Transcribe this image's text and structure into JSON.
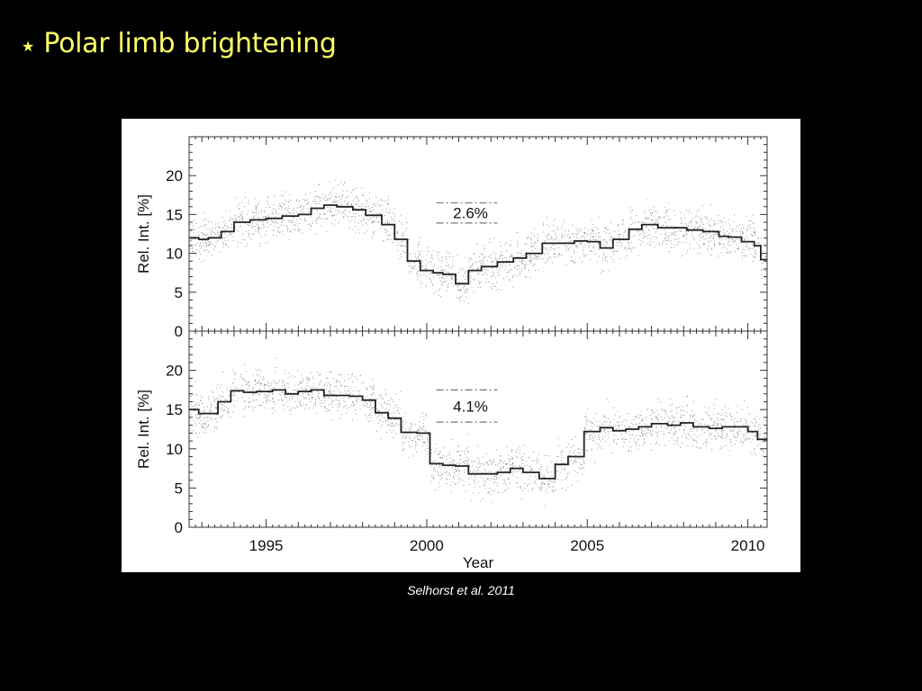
{
  "slide": {
    "bullet_icon": "star-icon",
    "bullet_char": "★",
    "title": "Polar limb brightening",
    "title_color": "#ffff66",
    "caption": "Selhorst et al. 2011"
  },
  "chart_data": [
    {
      "type": "line",
      "panel": "top",
      "title": "",
      "xlabel": "",
      "ylabel": "Rel. Int. [%]",
      "xlim": [
        1992.6,
        2010.6
      ],
      "ylim": [
        0,
        25
      ],
      "yticks": [
        "0",
        "5",
        "10",
        "15",
        "20"
      ],
      "xticks": [
        "1995",
        "2000",
        "2005",
        "2010"
      ],
      "annotation": "2.6%",
      "annotation_range": [
        13.9,
        16.5
      ],
      "series": [
        {
          "style": "step",
          "x": [
            1992.6,
            1992.9,
            1993.2,
            1993.6,
            1994.0,
            1994.5,
            1995.0,
            1995.5,
            1996.0,
            1996.4,
            1996.8,
            1997.2,
            1997.7,
            1998.1,
            1998.6,
            1999.0,
            1999.4,
            1999.8,
            2000.2,
            2000.5,
            2000.9,
            2001.3,
            2001.7,
            2002.2,
            2002.7,
            2003.1,
            2003.6,
            2004.1,
            2004.6,
            2005.0,
            2005.4,
            2005.8,
            2006.3,
            2006.7,
            2007.2,
            2007.7,
            2008.1,
            2008.6,
            2009.1,
            2009.4,
            2009.8,
            2010.2,
            2010.4
          ],
          "y": [
            12.0,
            11.8,
            12.0,
            12.8,
            14.0,
            14.3,
            14.5,
            14.8,
            15.0,
            15.8,
            16.2,
            16.0,
            15.6,
            14.9,
            13.7,
            11.8,
            9.0,
            7.8,
            7.5,
            7.3,
            6.1,
            7.8,
            8.3,
            8.9,
            9.4,
            10.0,
            11.3,
            11.3,
            11.6,
            11.5,
            10.7,
            11.8,
            13.1,
            13.7,
            13.3,
            13.3,
            13.0,
            12.8,
            12.2,
            12.1,
            11.5,
            11.0,
            9.2
          ]
        }
      ]
    },
    {
      "type": "line",
      "panel": "bottom",
      "title": "",
      "xlabel": "Year",
      "ylabel": "Rel. Int. [%]",
      "xlim": [
        1992.6,
        2010.6
      ],
      "ylim": [
        0,
        25
      ],
      "yticks": [
        "0",
        "5",
        "10",
        "15",
        "20"
      ],
      "xticks": [
        "1995",
        "2000",
        "2005",
        "2010"
      ],
      "annotation": "4.1%",
      "annotation_range": [
        13.4,
        17.5
      ],
      "series": [
        {
          "style": "step",
          "x": [
            1992.6,
            1992.9,
            1993.2,
            1993.5,
            1993.9,
            1994.3,
            1994.7,
            1995.2,
            1995.6,
            1996.0,
            1996.4,
            1996.8,
            1997.2,
            1997.6,
            1998.0,
            1998.4,
            1998.8,
            1999.2,
            1999.7,
            2000.1,
            2000.5,
            2000.9,
            2001.3,
            2001.8,
            2002.2,
            2002.6,
            2003.0,
            2003.5,
            2004.0,
            2004.4,
            2004.9,
            2005.4,
            2005.8,
            2006.2,
            2006.6,
            2007.0,
            2007.5,
            2007.9,
            2008.3,
            2008.8,
            2009.2,
            2009.6,
            2010.0,
            2010.3
          ],
          "y": [
            15.0,
            14.5,
            14.5,
            16.0,
            17.4,
            17.2,
            17.3,
            17.5,
            17.0,
            17.3,
            17.5,
            16.8,
            16.8,
            16.7,
            16.2,
            14.6,
            13.9,
            12.1,
            12.0,
            8.1,
            7.9,
            7.8,
            6.8,
            6.8,
            7.0,
            7.5,
            7.0,
            6.2,
            8.0,
            9.0,
            12.2,
            12.7,
            12.3,
            12.5,
            12.8,
            13.2,
            13.0,
            13.3,
            12.8,
            12.6,
            12.8,
            12.8,
            12.2,
            11.2
          ]
        }
      ]
    }
  ]
}
